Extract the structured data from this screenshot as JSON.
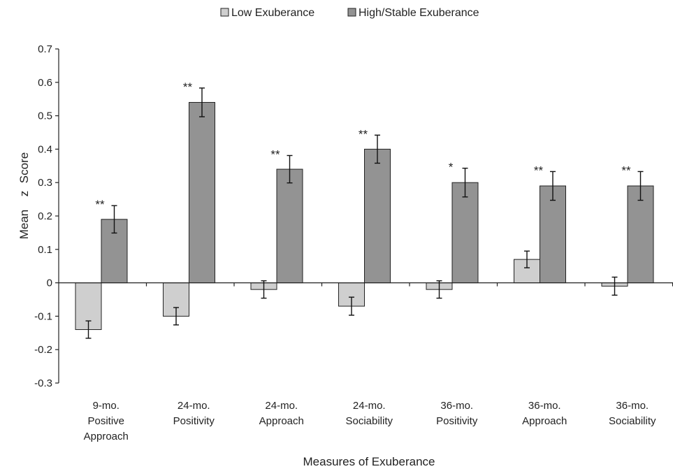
{
  "chart_data": {
    "type": "bar",
    "title": "",
    "xlabel": "Measures of Exuberance",
    "ylabel_parts": [
      "Mean",
      "z",
      "Score"
    ],
    "ylim": [
      -0.3,
      0.7
    ],
    "yticks": [
      -0.3,
      -0.2,
      -0.1,
      0,
      0.1,
      0.2,
      0.3,
      0.4,
      0.5,
      0.6,
      0.7
    ],
    "ytick_labels": [
      "-0.3",
      "-0.2",
      "-0.1",
      "0",
      "0.1",
      "0.2",
      "0.3",
      "0.4",
      "0.5",
      "0.6",
      "0.7"
    ],
    "grid": false,
    "legend_position": "top",
    "categories": [
      [
        "9-mo.",
        "Positive",
        "Approach"
      ],
      [
        "24-mo.",
        "Positivity"
      ],
      [
        "24-mo.",
        "Approach"
      ],
      [
        "24-mo.",
        "Sociability"
      ],
      [
        "36-mo.",
        "Positivity"
      ],
      [
        "36-mo.",
        "Approach"
      ],
      [
        "36-mo.",
        "Sociability"
      ]
    ],
    "series": [
      {
        "name": "Low Exuberance",
        "color": "#cfcfcf",
        "values": [
          -0.14,
          -0.1,
          -0.02,
          -0.07,
          -0.02,
          0.07,
          -0.01
        ],
        "errors": [
          0.026,
          0.026,
          0.026,
          0.027,
          0.026,
          0.025,
          0.027
        ]
      },
      {
        "name": "High/Stable Exuberance",
        "color": "#939393",
        "values": [
          0.19,
          0.54,
          0.34,
          0.4,
          0.3,
          0.29,
          0.29
        ],
        "errors": [
          0.041,
          0.043,
          0.041,
          0.042,
          0.043,
          0.043,
          0.043
        ]
      }
    ],
    "significance": [
      "**",
      "**",
      "**",
      "**",
      "*",
      "**",
      "**"
    ]
  }
}
